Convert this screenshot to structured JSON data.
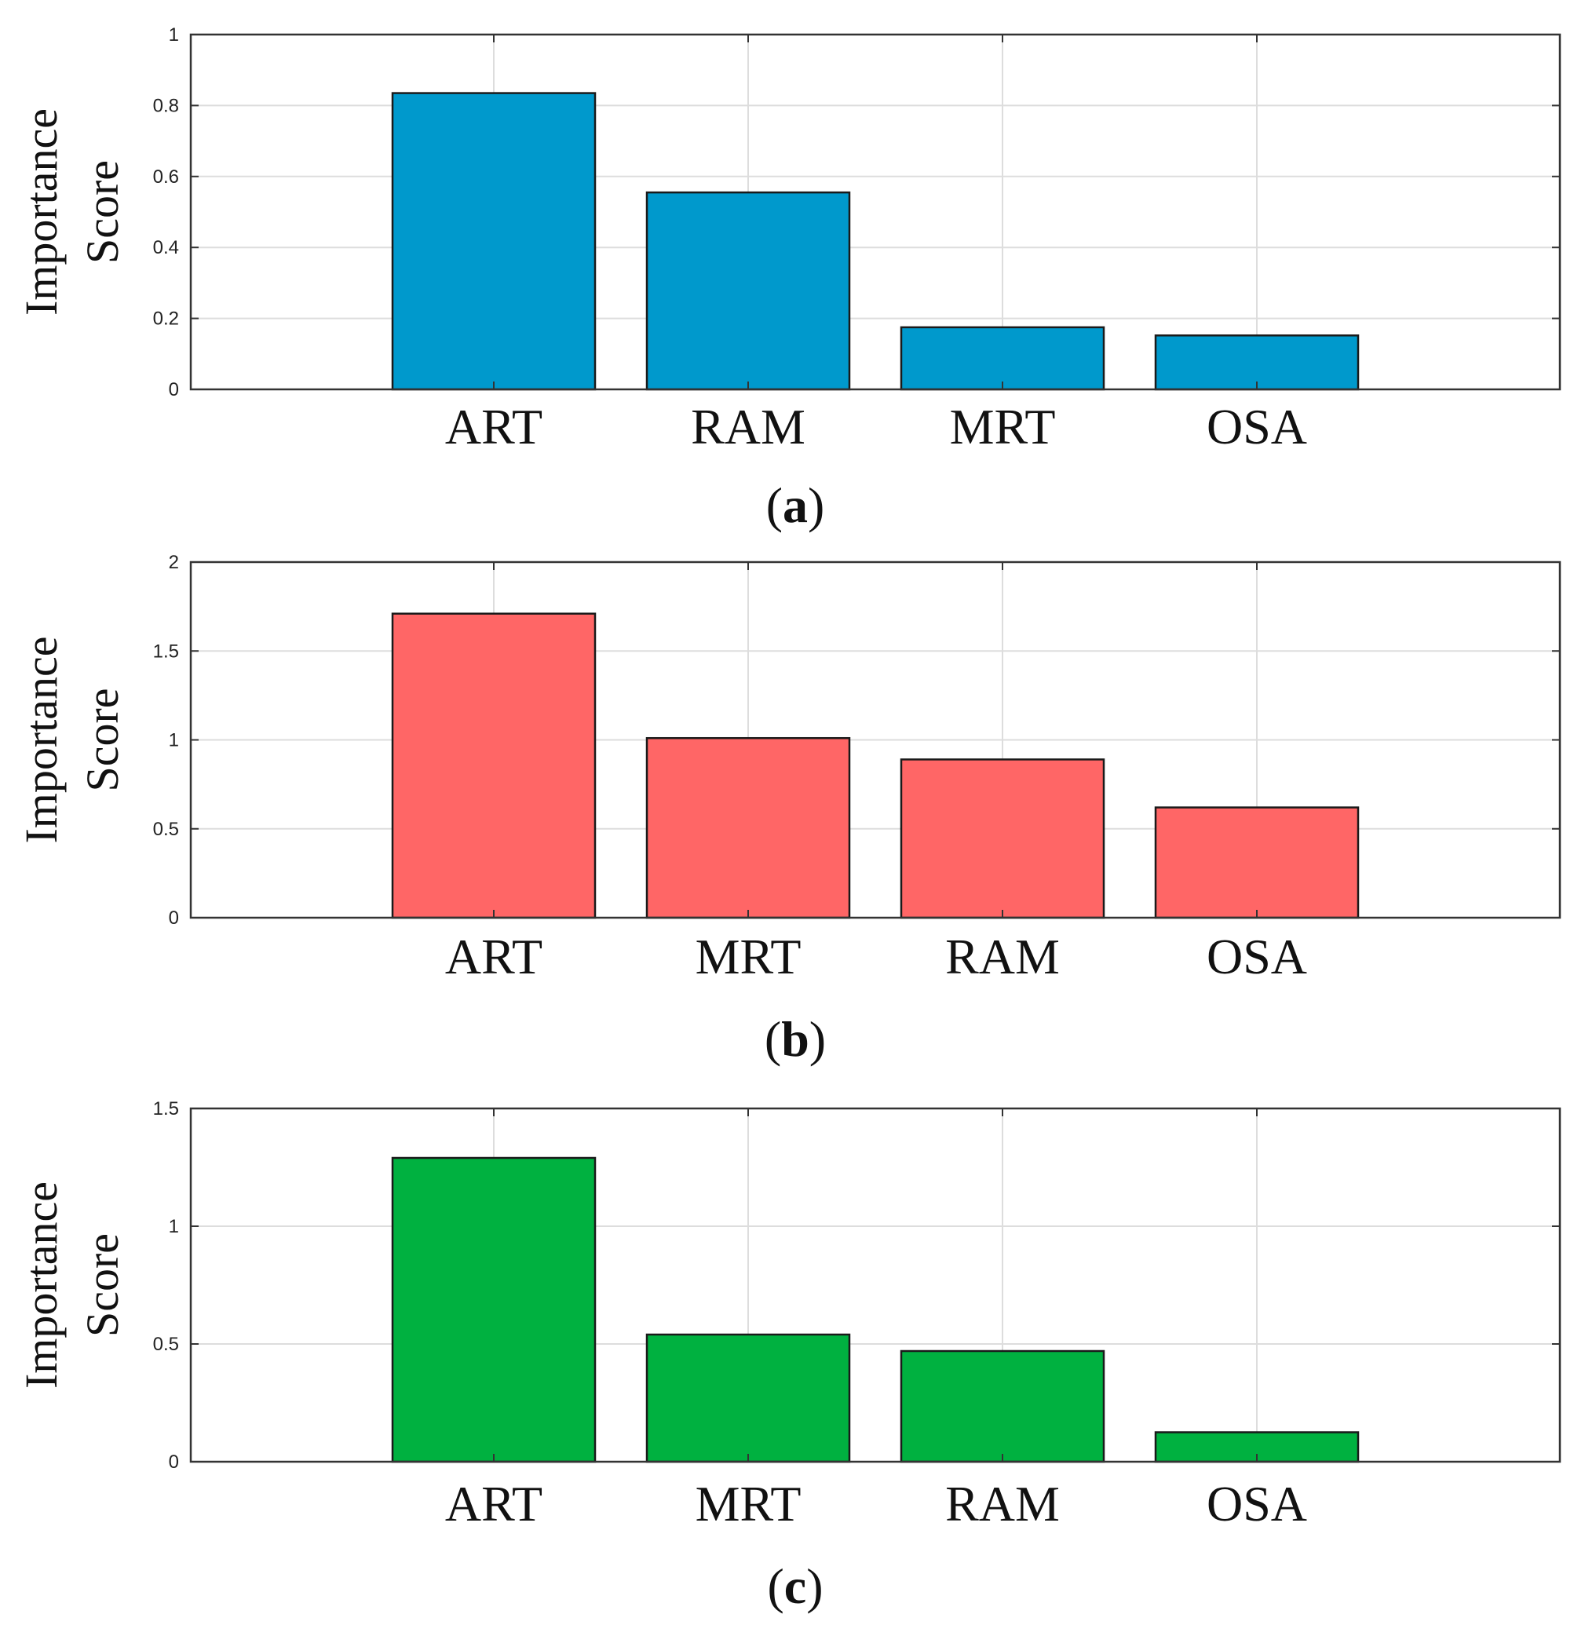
{
  "chart_data": [
    {
      "type": "bar",
      "panel": "a",
      "categories": [
        "ART",
        "RAM",
        "MRT",
        "OSA"
      ],
      "values": [
        0.835,
        0.555,
        0.175,
        0.152
      ],
      "ylabel": [
        "Importance",
        "Score"
      ],
      "xlabel": "",
      "ylim": [
        0,
        1
      ],
      "yticks": [
        0,
        0.2,
        0.4,
        0.6,
        0.8,
        1
      ],
      "ytick_labels": [
        "0",
        "0.2",
        "0.4",
        "0.6",
        "0.8",
        "1"
      ],
      "color": "#0099CC",
      "grid": true,
      "caption": {
        "open": "(",
        "letter": "a",
        "close": ")"
      }
    },
    {
      "type": "bar",
      "panel": "b",
      "categories": [
        "ART",
        "MRT",
        "RAM",
        "OSA"
      ],
      "values": [
        1.71,
        1.01,
        0.89,
        0.62
      ],
      "ylabel": [
        "Importance",
        "Score"
      ],
      "xlabel": "",
      "ylim": [
        0,
        2
      ],
      "yticks": [
        0,
        0.5,
        1,
        1.5,
        2
      ],
      "ytick_labels": [
        "0",
        "0.5",
        "1",
        "1.5",
        "2"
      ],
      "color": "#FF6666",
      "grid": true,
      "caption": {
        "open": "(",
        "letter": "b",
        "close": ")"
      }
    },
    {
      "type": "bar",
      "panel": "c",
      "categories": [
        "ART",
        "MRT",
        "RAM",
        "OSA"
      ],
      "values": [
        1.29,
        0.54,
        0.47,
        0.125
      ],
      "ylabel": [
        "Importance",
        "Score"
      ],
      "xlabel": "",
      "ylim": [
        0,
        1.5
      ],
      "yticks": [
        0,
        0.5,
        1,
        1.5
      ],
      "ytick_labels": [
        "0",
        "0.5",
        "1",
        "1.5"
      ],
      "color": "#00B140",
      "grid": true,
      "caption": {
        "open": "(",
        "letter": "c",
        "close": ")"
      }
    }
  ]
}
